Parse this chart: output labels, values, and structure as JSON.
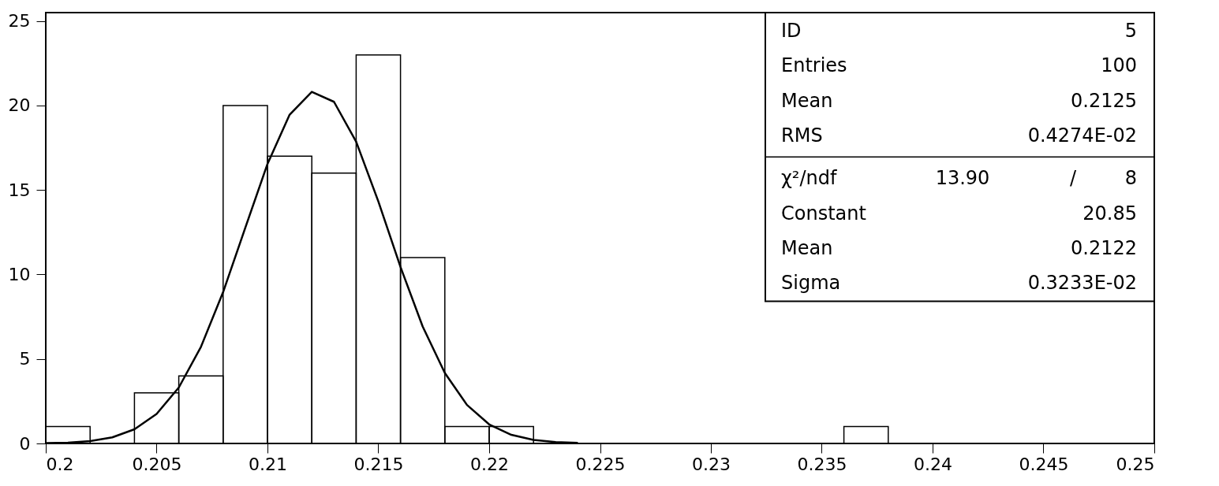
{
  "chart_data": {
    "type": "histogram",
    "bins": [
      0.2,
      0.202,
      0.204,
      0.206,
      0.208,
      0.21,
      0.212,
      0.214,
      0.216,
      0.218,
      0.22,
      0.222,
      0.224,
      0.226,
      0.228,
      0.23,
      0.232,
      0.234,
      0.236,
      0.238,
      0.24,
      0.242,
      0.244,
      0.246,
      0.248,
      0.25
    ],
    "values": [
      1,
      0,
      3,
      4,
      20,
      17,
      16,
      23,
      11,
      1,
      1,
      0,
      0,
      0,
      0,
      0,
      0,
      0,
      1,
      0,
      0,
      0,
      0,
      0,
      0
    ],
    "color": "#000000",
    "series": [
      {
        "type": "line",
        "color": "#000000",
        "x": [
          0.2,
          0.201,
          0.202,
          0.203,
          0.204,
          0.205,
          0.206,
          0.207,
          0.208,
          0.209,
          0.21,
          0.211,
          0.212,
          0.213,
          0.214,
          0.215,
          0.216,
          0.217,
          0.218,
          0.219,
          0.22,
          0.221,
          0.222,
          0.223,
          0.224
        ],
        "values": [
          0.02,
          0.05,
          0.14,
          0.36,
          0.84,
          1.75,
          3.31,
          5.72,
          8.96,
          12.77,
          16.54,
          19.46,
          20.81,
          20.22,
          17.86,
          14.33,
          10.45,
          6.92,
          4.17,
          2.28,
          1.13,
          0.51,
          0.21,
          0.08,
          0.03
        ]
      }
    ],
    "xlim": [
      0.2,
      0.25
    ],
    "xticks": [
      0.2,
      0.205,
      0.21,
      0.215,
      0.22,
      0.225,
      0.23,
      0.235,
      0.24,
      0.245,
      0.25
    ],
    "ylim": [
      0,
      25.5
    ],
    "yticks": [
      0,
      5,
      10,
      15,
      20,
      25
    ],
    "grid": false,
    "annotations": [
      "ID",
      "5",
      "Entries",
      "100",
      "Mean",
      "0.2125",
      "RMS",
      "0.4274E-02",
      "χ²/ndf",
      "13.90",
      "/",
      "8",
      "Constant",
      "20.85",
      "Mean",
      "0.2122",
      "Sigma",
      "0.3233E-02"
    ]
  }
}
